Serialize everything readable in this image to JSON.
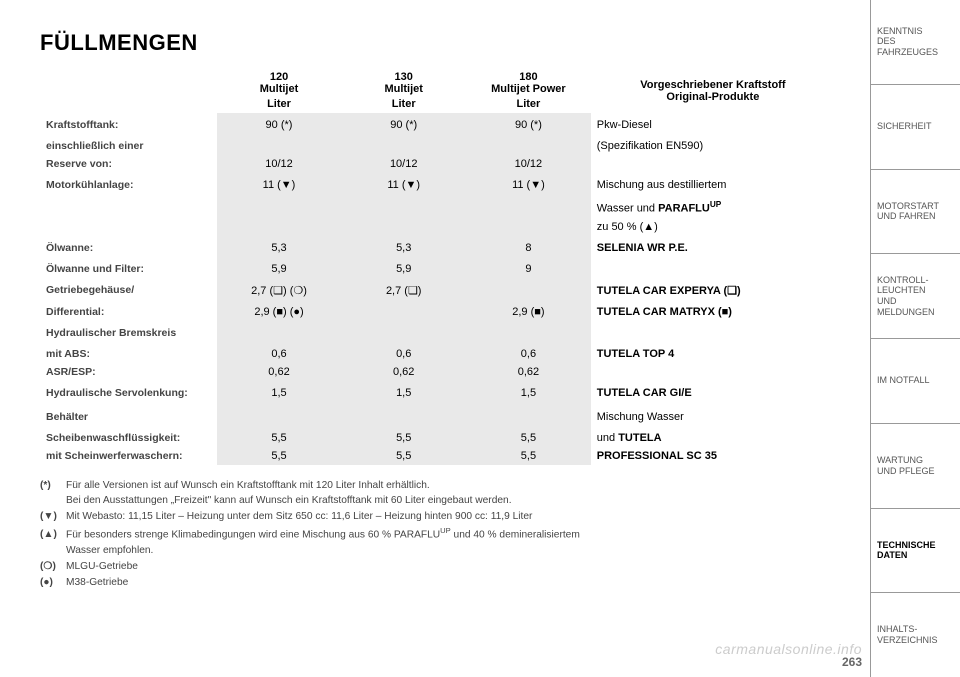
{
  "title": "FÜLLMENGEN",
  "page_number": "263",
  "watermark": "carmanualsonline.info",
  "colors": {
    "shade_bg": "#e9e9e9",
    "border": "#999999",
    "muted_text": "#555555"
  },
  "engines": {
    "e1": {
      "name": "120\nMultijet",
      "unit": "Liter"
    },
    "e2": {
      "name": "130\nMultijet",
      "unit": "Liter"
    },
    "e3": {
      "name": "180\nMultijet Power",
      "unit": "Liter"
    }
  },
  "products_header": "Vorgeschriebener Kraftstoff\nOriginal-Produkte",
  "rows": {
    "fuel": {
      "label_a": "Kraftstofftank:",
      "label_b": "einschließlich einer",
      "label_c": "Reserve von:",
      "a": {
        "e1": "90 (*)",
        "e2": "90 (*)",
        "e3": "90 (*)"
      },
      "b": {
        "e1": "10/12",
        "e2": "10/12",
        "e3": "10/12"
      },
      "prod_a": "Pkw-Diesel",
      "prod_b": "(Spezifikation EN590)"
    },
    "cool": {
      "label": "Motorkühlanlage:",
      "v": {
        "e1": "11 (▼)",
        "e2": "11 (▼)",
        "e3": "11 (▼)"
      },
      "prod_a": "Mischung aus destilliertem",
      "prod_b_pre": "Wasser und ",
      "prod_b_bold": "PARAFLU",
      "prod_b_sup": "UP",
      "prod_c": "zu 50 % (▲)"
    },
    "oil": {
      "label_a": "Ölwanne:",
      "label_b": "Ölwanne und Filter:",
      "a": {
        "e1": "5,3",
        "e2": "5,3",
        "e3": "8"
      },
      "b": {
        "e1": "5,9",
        "e2": "5,9",
        "e3": "9"
      },
      "prod": "SELENIA WR P.E."
    },
    "gear": {
      "label_a": "Getriebegehäuse/",
      "label_b": "Differential:",
      "a": {
        "e1": "2,7 (❏) (❍)",
        "e2": "2,7 (❏)",
        "e3": ""
      },
      "b": {
        "e1": "2,9 (■) (●)",
        "e2": "",
        "e3": "2,9 (■)"
      },
      "prod_a": "TUTELA CAR EXPERYA (❏)",
      "prod_b": "TUTELA CAR MATRYX (■)"
    },
    "brake": {
      "label_a": "Hydraulischer Bremskreis",
      "label_b": "mit ABS:",
      "label_c": "ASR/ESP:",
      "a": {
        "e1": "0,6",
        "e2": "0,6",
        "e3": "0,6"
      },
      "b": {
        "e1": "0,62",
        "e2": "0,62",
        "e3": "0,62"
      },
      "prod": "TUTELA TOP 4"
    },
    "servo": {
      "label": "Hydraulische Servolenkung:",
      "v": {
        "e1": "1,5",
        "e2": "1,5",
        "e3": "1,5"
      },
      "prod": "TUTELA CAR GI/E"
    },
    "wash": {
      "label_a": "Behälter",
      "label_b": "Scheibenwaschflüssigkeit:",
      "label_c": "mit Scheinwerferwaschern:",
      "a": {
        "e1": "5,5",
        "e2": "5,5",
        "e3": "5,5"
      },
      "b": {
        "e1": "5,5",
        "e2": "5,5",
        "e3": "5,5"
      },
      "prod_a": "Mischung Wasser",
      "prod_b_pre": "und ",
      "prod_b_bold": "TUTELA",
      "prod_c": "PROFESSIONAL SC 35"
    }
  },
  "footnotes": {
    "star": {
      "sym": "(*)",
      "l1": "Für alle Versionen ist auf Wunsch ein Kraftstofftank mit 120 Liter Inhalt erhältlich.",
      "l2": "Bei den Ausstattungen „Freizeit\" kann auf Wunsch ein Kraftstofftank mit 60 Liter eingebaut werden."
    },
    "down": {
      "sym": "(▼)",
      "l1": "Mit Webasto: 11,15 Liter – Heizung unter dem Sitz 650 cc: 11,6 Liter – Heizung hinten 900 cc: 11,9 Liter"
    },
    "up": {
      "sym": "(▲)",
      "l1_pre": "Für besonders strenge Klimabedingungen wird eine Mischung aus 60 % PARAFLU",
      "l1_sup": "UP",
      "l1_post": " und 40 % demineralisiertem",
      "l2": "Wasser empfohlen."
    },
    "circ": {
      "sym": "(❍)",
      "l1": "MLGU-Getriebe"
    },
    "dot": {
      "sym": "(●)",
      "l1": "M38-Getriebe"
    }
  },
  "sidebar": [
    {
      "label": "KENNTNIS\nDES FAHRZEUGES",
      "active": false
    },
    {
      "label": "SICHERHEIT",
      "active": false
    },
    {
      "label": "MOTORSTART\nUND FAHREN",
      "active": false
    },
    {
      "label": "KONTROLL-\nLEUCHTEN\nUND MELDUNGEN",
      "active": false
    },
    {
      "label": "IM NOTFALL",
      "active": false
    },
    {
      "label": "WARTUNG\nUND PFLEGE",
      "active": false
    },
    {
      "label": "TECHNISCHE\nDATEN",
      "active": true
    },
    {
      "label": "INHALTS-\nVERZEICHNIS",
      "active": false
    }
  ]
}
